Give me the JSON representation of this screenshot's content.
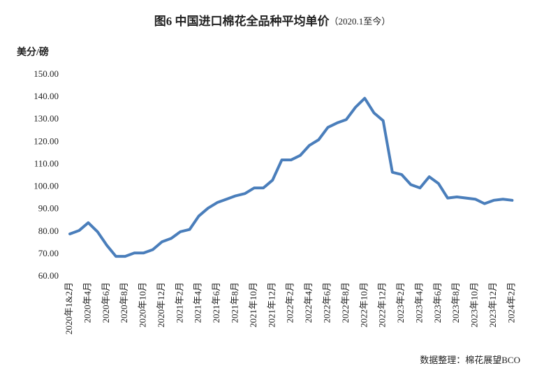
{
  "chart_data": {
    "type": "line",
    "title": "图6  中国进口棉花全品种平均单价",
    "subtitle": "（2020.1至今）",
    "y_label": "美分/磅",
    "source": "数据整理：棉花展望BCO",
    "categories": [
      "2020年1&2月",
      null,
      "2020年4月",
      null,
      "2020年6月",
      null,
      "2020年8月",
      null,
      "2020年10月",
      null,
      "2020年12月",
      null,
      "2021年2月",
      null,
      "2021年4月",
      null,
      "2021年6月",
      null,
      "2021年8月",
      null,
      "2021年10月",
      null,
      "2021年12月",
      null,
      "2022年2月",
      null,
      "2022年4月",
      null,
      "2022年6月",
      null,
      "2022年8月",
      null,
      "2022年10月",
      null,
      "2022年12月",
      null,
      "2023年2月",
      null,
      "2023年4月",
      null,
      "2023年6月",
      null,
      "2023年8月",
      null,
      "2023年10月",
      null,
      "2023年12月",
      null,
      "2024年2月"
    ],
    "series": [
      {
        "name": "平均单价",
        "color": "#4a7ebb",
        "values": [
          79,
          80.5,
          84,
          80,
          74,
          69,
          69,
          70.5,
          70.5,
          72,
          75.5,
          77,
          80,
          81,
          87,
          90.5,
          93,
          94.5,
          96,
          97,
          99.5,
          99.5,
          103,
          112,
          112,
          114,
          118.5,
          121,
          126.5,
          128.5,
          130,
          135.5,
          139.5,
          133,
          129.5,
          106.5,
          105.5,
          101,
          99.5,
          104.5,
          101.5,
          95,
          95.5,
          95,
          94.5,
          92.5,
          94,
          94.5,
          94
        ]
      }
    ],
    "ylim": [
      60,
      150
    ],
    "yticks": [
      {
        "value": 60,
        "label": "60.00"
      },
      {
        "value": 70,
        "label": "70.00"
      },
      {
        "value": 80,
        "label": "80.00"
      },
      {
        "value": 90,
        "label": "90.00"
      },
      {
        "value": 100,
        "label": "100.00"
      },
      {
        "value": 110,
        "label": "110.00"
      },
      {
        "value": 120,
        "label": "120.00"
      },
      {
        "value": 130,
        "label": "130.00"
      },
      {
        "value": 140,
        "label": "140.00"
      },
      {
        "value": 150,
        "label": "150.00"
      }
    ],
    "grid": false
  }
}
